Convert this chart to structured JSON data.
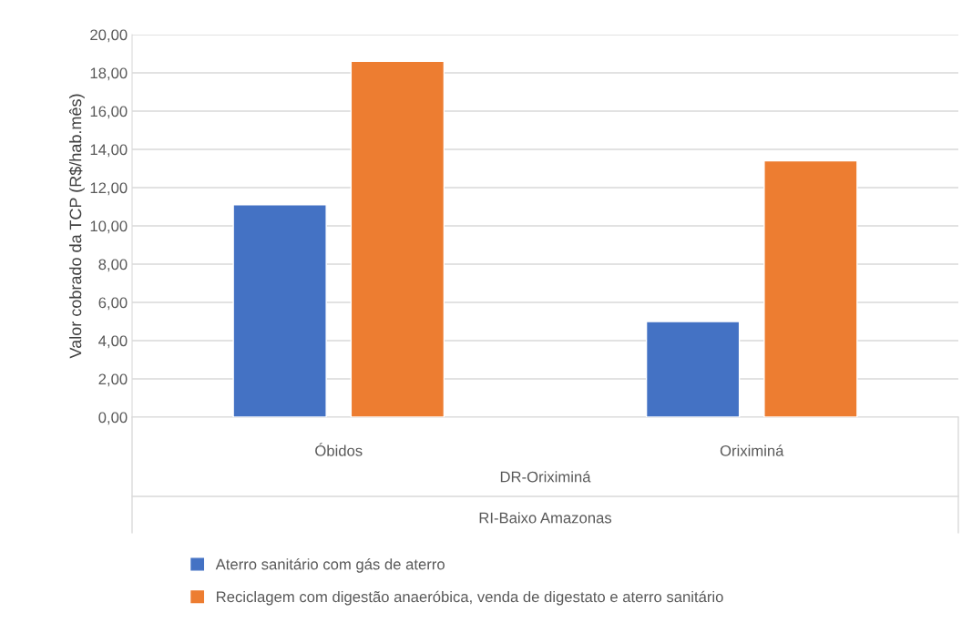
{
  "chart_data": {
    "type": "bar",
    "ylabel": "Valor cobrado da TCP (R$/hab.mês)",
    "categories": [
      "Óbidos",
      "Oriximiná"
    ],
    "series": [
      {
        "name": "Aterro sanitário com gás de aterro",
        "color": "#4472c4",
        "values": [
          11.1,
          5.0
        ]
      },
      {
        "name": "Reciclagem com digestão anaeróbica, venda de digestato e aterro sanitário",
        "color": "#ed7d31",
        "values": [
          18.6,
          13.4
        ]
      }
    ],
    "ylim": [
      0,
      20
    ],
    "yticks": [
      {
        "value": 0,
        "label": "0,00"
      },
      {
        "value": 2,
        "label": "2,00"
      },
      {
        "value": 4,
        "label": "4,00"
      },
      {
        "value": 6,
        "label": "6,00"
      },
      {
        "value": 8,
        "label": "8,00"
      },
      {
        "value": 10,
        "label": "10,00"
      },
      {
        "value": 12,
        "label": "12,00"
      },
      {
        "value": 14,
        "label": "14,00"
      },
      {
        "value": 16,
        "label": "16,00"
      },
      {
        "value": 18,
        "label": "18,00"
      },
      {
        "value": 20,
        "label": "20,00"
      }
    ],
    "annotations": [
      "DR-Oriximiná",
      "RI-Baixo Amazonas"
    ],
    "grid": "y",
    "legend": "bottom"
  }
}
